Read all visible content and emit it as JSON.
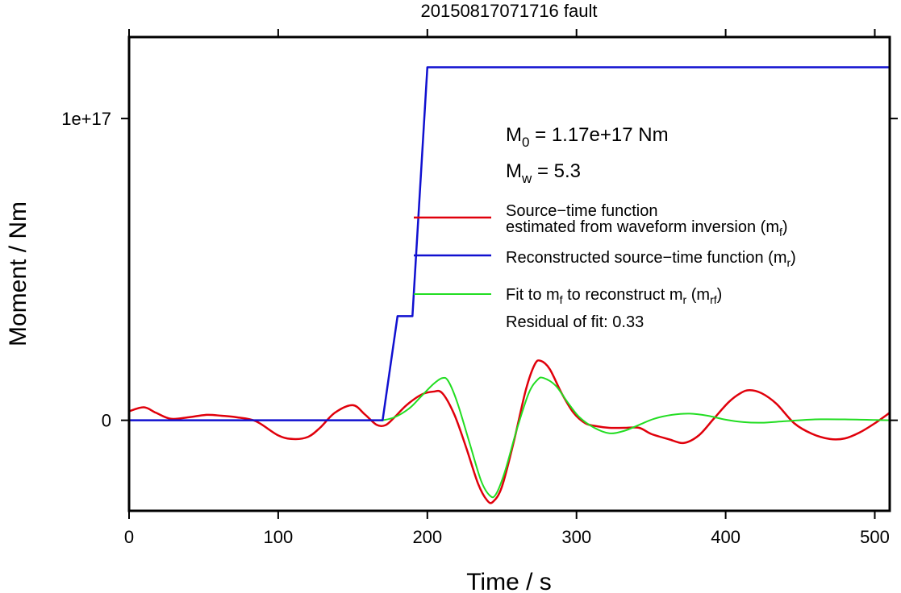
{
  "chart_data": {
    "type": "line",
    "title": "20150817071716 fault",
    "xlabel": "Time / s",
    "ylabel": "Moment / Nm",
    "xlim": [
      0,
      510
    ],
    "ylim": [
      -3e+16,
      1.27e+17
    ],
    "xticks": [
      0,
      100,
      200,
      300,
      400,
      500
    ],
    "xtick_labels": [
      "0",
      "100",
      "200",
      "300",
      "400",
      "500"
    ],
    "yticks": [
      0,
      1e+17
    ],
    "ytick_labels": [
      "0",
      "1e+17"
    ],
    "grid": false,
    "annotations": {
      "m0": {
        "main": "M",
        "sub": "0",
        "rest": " = 1.17e+17 Nm"
      },
      "mw": {
        "main": "M",
        "sub": "w",
        "rest": " = 5.3"
      },
      "residual": "Residual of fit: 0.33"
    },
    "legend": {
      "placement": "right",
      "entries": [
        {
          "line1": "Source−time function",
          "line2": "estimated from waveform inversion (m",
          "sub": "f",
          "close": ")",
          "color": "#e0000b"
        },
        {
          "line1": "Reconstructed source−time function (m",
          "sub": "r",
          "close": ")",
          "color": "#1010d0"
        },
        {
          "line1": "Fit to m",
          "sub": "f",
          "mid": " to reconstruct m",
          "sub2": "r",
          "mid2": " (m",
          "sub3": "rf",
          "close": ")",
          "color": "#22dd22"
        }
      ]
    },
    "series": [
      {
        "color": "#e0000b",
        "x": [
          0,
          10,
          18,
          28,
          40,
          52,
          62,
          72,
          85,
          100,
          110,
          120,
          128,
          138,
          150,
          158,
          166,
          172,
          178,
          186,
          196,
          204,
          210,
          218,
          226,
          234,
          240,
          244,
          250,
          258,
          266,
          272,
          276,
          282,
          290,
          298,
          306,
          314,
          322,
          332,
          342,
          350,
          362,
          372,
          382,
          392,
          402,
          410,
          416,
          424,
          434,
          446,
          458,
          470,
          480,
          490,
          500,
          510
        ],
        "y": [
          3000000000000000.0,
          4300000000000000.0,
          2500000000000000.0,
          500000000000000.0,
          1000000000000000.0,
          1800000000000000.0,
          1500000000000000.0,
          1000000000000000.0,
          -300000000000000.0,
          -5000000000000000.0,
          -6200000000000000.0,
          -5500000000000000.0,
          -2500000000000000.0,
          2500000000000000.0,
          5000000000000000.0,
          2000000000000000.0,
          -1500000000000000.0,
          -1600000000000000.0,
          1000000000000000.0,
          5000000000000000.0,
          8500000000000000.0,
          9500000000000000.0,
          9000000000000000.0,
          2000000000000000.0,
          -9000000000000000.0,
          -2.1e+16,
          -2.65e+16,
          -2.7e+16,
          -2.2e+16,
          -7000000000000000.0,
          1e+16,
          1.85e+16,
          1.97e+16,
          1.7e+16,
          9000000000000000.0,
          2500000000000000.0,
          -1000000000000000.0,
          -2000000000000000.0,
          -2500000000000000.0,
          -2500000000000000.0,
          -2500000000000000.0,
          -4500000000000000.0,
          -6300000000000000.0,
          -7500000000000000.0,
          -5000000000000000.0,
          500000000000000.0,
          6000000000000000.0,
          9000000000000000.0,
          1e+16,
          9000000000000000.0,
          5500000000000000.0,
          -1000000000000000.0,
          -4500000000000000.0,
          -6200000000000000.0,
          -6000000000000000.0,
          -4000000000000000.0,
          -1000000000000000.0,
          2500000000000000.0
        ]
      },
      {
        "color": "#1010d0",
        "x": [
          0,
          170,
          180,
          190,
          200,
          510
        ],
        "y": [
          0,
          0,
          3.45e+16,
          3.45e+16,
          1.17e+17,
          1.17e+17
        ]
      },
      {
        "color": "#22dd22",
        "x": [
          170,
          178,
          188,
          196,
          204,
          210,
          214,
          220,
          228,
          236,
          242,
          246,
          252,
          260,
          268,
          274,
          278,
          286,
          294,
          302,
          312,
          322,
          332,
          342,
          352,
          364,
          376,
          388,
          400,
          412,
          424,
          440,
          460,
          480,
          500,
          510
        ],
        "y": [
          0,
          1000000000000000.0,
          4000000000000000.0,
          8000000000000000.0,
          1.2e+16,
          1.4e+16,
          1.3e+16,
          6000000000000000.0,
          -7000000000000000.0,
          -2e+16,
          -2.5e+16,
          -2.45e+16,
          -1.7e+16,
          -3000000000000000.0,
          9000000000000000.0,
          1.35e+16,
          1.4e+16,
          1.15e+16,
          6000000000000000.0,
          1000000000000000.0,
          -2500000000000000.0,
          -4300000000000000.0,
          -3500000000000000.0,
          -1500000000000000.0,
          500000000000000.0,
          1800000000000000.0,
          2200000000000000.0,
          1500000000000000.0,
          200000000000000.0,
          -600000000000000.0,
          -800000000000000.0,
          -300000000000000.0,
          300000000000000.0,
          300000000000000.0,
          100000000000000.0,
          0
        ]
      }
    ]
  }
}
